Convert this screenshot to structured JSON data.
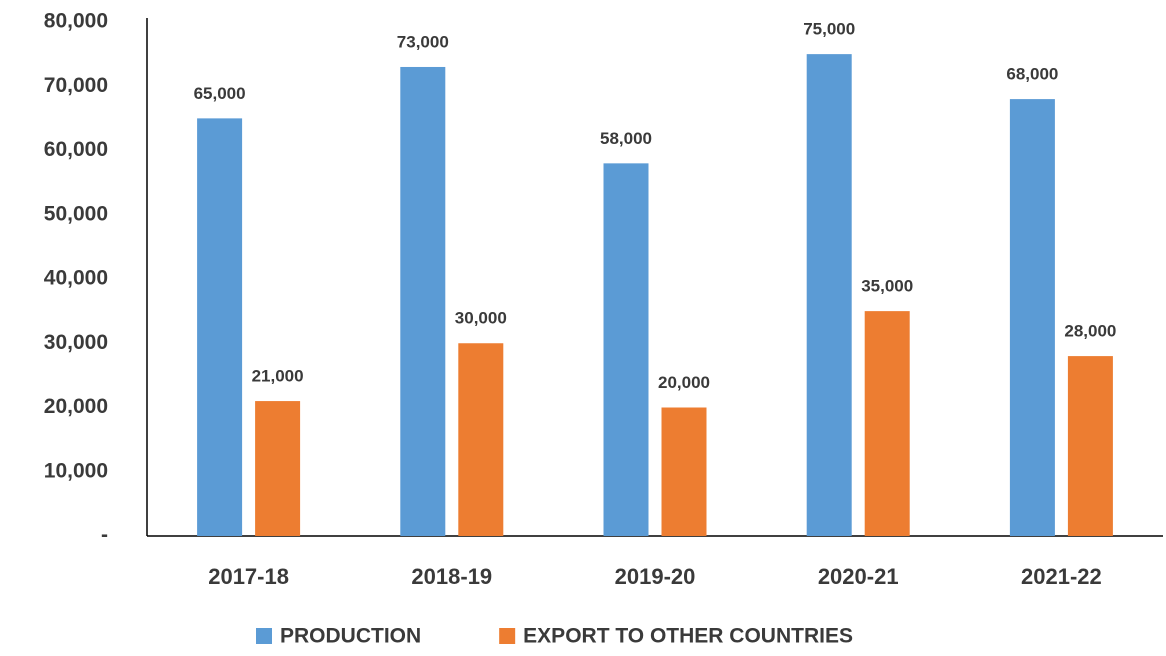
{
  "chart_data": {
    "type": "bar",
    "categories": [
      "2017-18",
      "2018-19",
      "2019-20",
      "2020-21",
      "2021-22"
    ],
    "series": [
      {
        "name": "PRODUCTION",
        "color": "#5b9bd5",
        "values": [
          65000,
          73000,
          58000,
          75000,
          68000
        ],
        "value_labels": [
          "65,000",
          "73,000",
          "58,000",
          "75,000",
          "68,000"
        ]
      },
      {
        "name": "EXPORT TO OTHER COUNTRIES",
        "color": "#ed7d31",
        "values": [
          21000,
          30000,
          20000,
          35000,
          28000
        ],
        "value_labels": [
          "21,000",
          "30,000",
          "20,000",
          "35,000",
          "28,000"
        ]
      }
    ],
    "ylim": [
      0,
      80000
    ],
    "yticks": [
      {
        "value": 0,
        "label": "-"
      },
      {
        "value": 10000,
        "label": "10,000"
      },
      {
        "value": 20000,
        "label": "20,000"
      },
      {
        "value": 30000,
        "label": "30,000"
      },
      {
        "value": 40000,
        "label": "40,000"
      },
      {
        "value": 50000,
        "label": "50,000"
      },
      {
        "value": 60000,
        "label": "60,000"
      },
      {
        "value": 70000,
        "label": "70,000"
      },
      {
        "value": 80000,
        "label": "80,000"
      }
    ],
    "grid": false,
    "legend": "bottom"
  }
}
